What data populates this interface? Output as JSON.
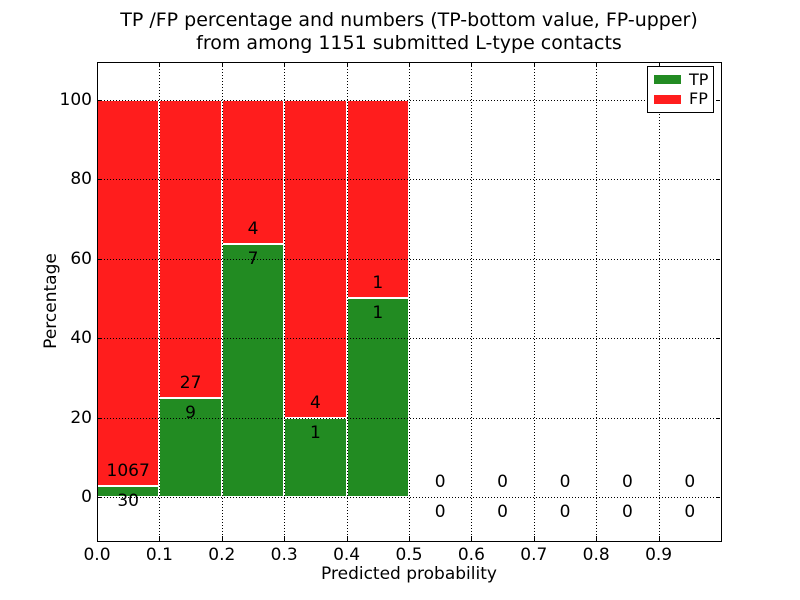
{
  "figure": {
    "title_line1": "TP /FP percentage and numbers (TP-bottom value, FP-upper)",
    "title_line2": "from among 1151 submitted L-type contacts"
  },
  "chart_data": {
    "type": "bar",
    "stacked": true,
    "title": "TP /FP percentage and numbers (TP-bottom value, FP-upper) from among 1151 submitted L-type contacts",
    "xlabel": "Predicted probability",
    "ylabel": "Percentage",
    "total_contacts": 1151,
    "xlim": [
      0.0,
      1.0
    ],
    "ylim": [
      -11,
      110
    ],
    "grid": {
      "on": true,
      "style": "dotted",
      "color": "#000000"
    },
    "xticks": [
      {
        "value": 0.0,
        "label": "0.0"
      },
      {
        "value": 0.1,
        "label": "0.1"
      },
      {
        "value": 0.2,
        "label": "0.2"
      },
      {
        "value": 0.3,
        "label": "0.3"
      },
      {
        "value": 0.4,
        "label": "0.4"
      },
      {
        "value": 0.5,
        "label": "0.5"
      },
      {
        "value": 0.6,
        "label": "0.6"
      },
      {
        "value": 0.7,
        "label": "0.7"
      },
      {
        "value": 0.8,
        "label": "0.8"
      },
      {
        "value": 0.9,
        "label": "0.9"
      }
    ],
    "yticks": [
      {
        "value": 0,
        "label": "0"
      },
      {
        "value": 20,
        "label": "20"
      },
      {
        "value": 40,
        "label": "40"
      },
      {
        "value": 60,
        "label": "60"
      },
      {
        "value": 80,
        "label": "80"
      },
      {
        "value": 100,
        "label": "100"
      }
    ],
    "colors": {
      "tp": "#228b22",
      "fp": "#ff1d1d"
    },
    "legend": {
      "position": "upper right",
      "entries": [
        {
          "name": "TP",
          "color": "#228b22"
        },
        {
          "name": "FP",
          "color": "#ff1d1d"
        }
      ]
    },
    "series": [
      {
        "name": "TP",
        "counts": [
          30,
          9,
          7,
          1,
          1,
          0,
          0,
          0,
          0,
          0
        ]
      },
      {
        "name": "FP",
        "counts": [
          1067,
          27,
          4,
          4,
          1,
          0,
          0,
          0,
          0,
          0
        ]
      }
    ],
    "bins": [
      {
        "x_start": 0.0,
        "x_end": 0.1,
        "tp_count": 30,
        "fp_count": 1067,
        "tp_pct": 2.73
      },
      {
        "x_start": 0.1,
        "x_end": 0.2,
        "tp_count": 9,
        "fp_count": 27,
        "tp_pct": 25.0
      },
      {
        "x_start": 0.2,
        "x_end": 0.3,
        "tp_count": 7,
        "fp_count": 4,
        "tp_pct": 63.64
      },
      {
        "x_start": 0.3,
        "x_end": 0.4,
        "tp_count": 1,
        "fp_count": 4,
        "tp_pct": 20.0
      },
      {
        "x_start": 0.4,
        "x_end": 0.5,
        "tp_count": 1,
        "fp_count": 1,
        "tp_pct": 50.0
      },
      {
        "x_start": 0.5,
        "x_end": 0.6,
        "tp_count": 0,
        "fp_count": 0,
        "tp_pct": 0
      },
      {
        "x_start": 0.6,
        "x_end": 0.7,
        "tp_count": 0,
        "fp_count": 0,
        "tp_pct": 0
      },
      {
        "x_start": 0.7,
        "x_end": 0.8,
        "tp_count": 0,
        "fp_count": 0,
        "tp_pct": 0
      },
      {
        "x_start": 0.8,
        "x_end": 0.9,
        "tp_count": 0,
        "fp_count": 0,
        "tp_pct": 0
      },
      {
        "x_start": 0.9,
        "x_end": 1.0,
        "tp_count": 0,
        "fp_count": 0,
        "tp_pct": 0
      }
    ]
  }
}
